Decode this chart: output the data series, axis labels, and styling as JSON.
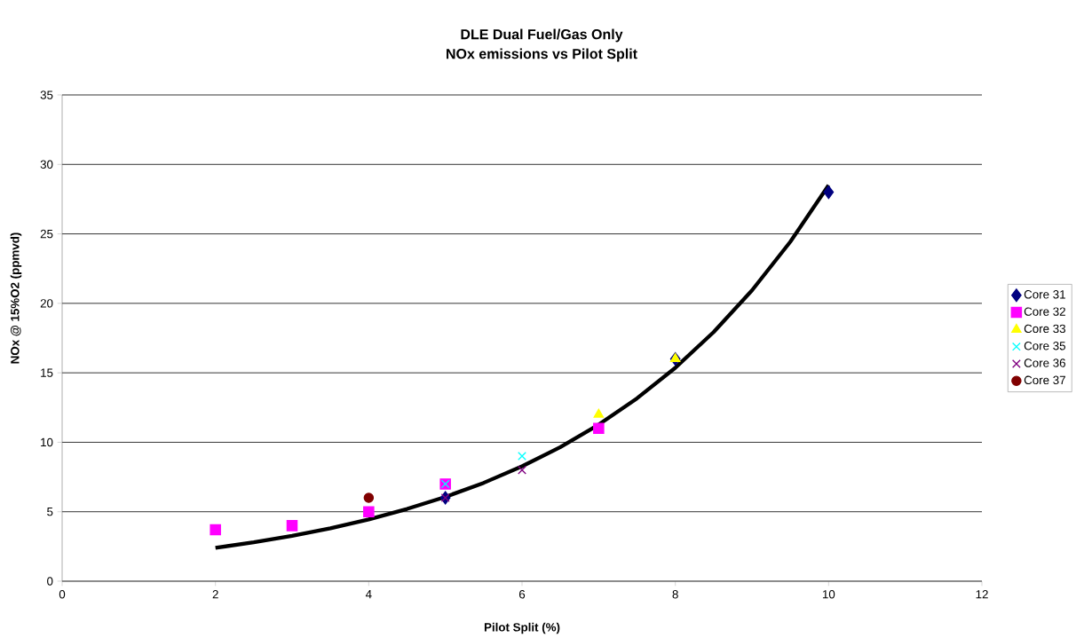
{
  "chart_data": {
    "type": "scatter",
    "title": "DLE Dual Fuel/Gas Only",
    "subtitle": "NOx emissions vs Pilot Split",
    "xlabel": "Pilot Split (%)",
    "ylabel": "NOx @ 15%O2 (ppmvd)",
    "xlim": [
      0,
      12
    ],
    "ylim": [
      0,
      35
    ],
    "xticks": [
      0,
      2,
      4,
      6,
      8,
      10,
      12
    ],
    "yticks": [
      0,
      5,
      10,
      15,
      20,
      25,
      30,
      35
    ],
    "grid": "y",
    "legend": "right",
    "series": [
      {
        "name": "Core 31",
        "color": "#000080",
        "marker": "diamond",
        "x": [
          5,
          8,
          10
        ],
        "values": [
          6,
          16,
          28
        ]
      },
      {
        "name": "Core 32",
        "color": "#ff00ff",
        "marker": "square",
        "x": [
          2,
          3,
          4,
          5,
          7
        ],
        "values": [
          3.7,
          4,
          5,
          7,
          11
        ]
      },
      {
        "name": "Core 33",
        "color": "#ffff00",
        "marker": "triangle",
        "x": [
          7,
          8
        ],
        "values": [
          12,
          16
        ]
      },
      {
        "name": "Core 35",
        "color": "#00ffff",
        "marker": "cross",
        "x": [
          5,
          6
        ],
        "values": [
          7,
          9
        ]
      },
      {
        "name": "Core 36",
        "color": "#800080",
        "marker": "cross",
        "x": [
          5,
          6
        ],
        "values": [
          6,
          8
        ]
      },
      {
        "name": "Core 37",
        "color": "#800000",
        "marker": "circle",
        "x": [
          4
        ],
        "values": [
          6
        ]
      },
      {
        "type": "line",
        "color": "#000000",
        "marker": "none",
        "x": [
          2,
          2.5,
          3,
          3.5,
          4,
          4.5,
          5,
          5.5,
          6,
          6.5,
          7,
          7.5,
          8,
          8.5,
          9,
          9.5,
          10
        ],
        "values": [
          2.4,
          2.8,
          3.27,
          3.81,
          4.45,
          5.2,
          6.07,
          7.08,
          8.27,
          9.65,
          11.27,
          13.16,
          15.36,
          17.93,
          20.93,
          24.43,
          28.5
        ]
      }
    ]
  }
}
